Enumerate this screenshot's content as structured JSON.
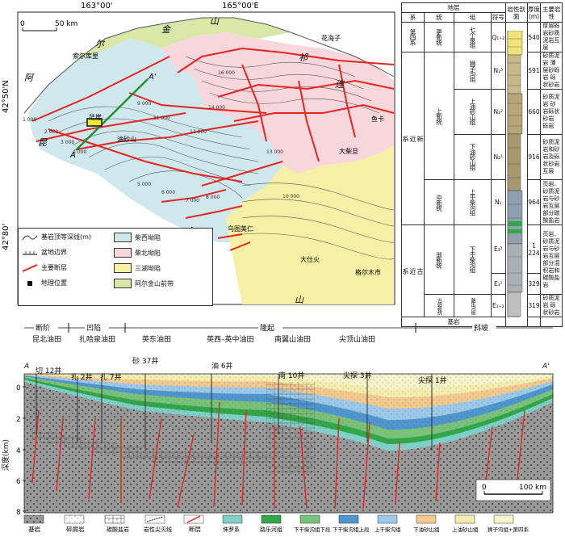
{
  "map": {
    "lon_labels": [
      "163°00'",
      "165°00'E"
    ],
    "lat_labels": [
      "42°50'N",
      "42°80'"
    ],
    "scale": "50 km",
    "places": [
      "索尔库里",
      "花海子",
      "鱼卡",
      "乌图美仁",
      "大柴旦",
      "格尔木市",
      "大仕火",
      "油砂山",
      "茫崖"
    ],
    "section_end_a": "A",
    "section_end_b": "A'",
    "frame_letters": [
      "阿",
      "尔",
      "金",
      "山",
      "祁",
      "连",
      "昆",
      "仑",
      "山"
    ],
    "contour_values": [
      "1 000",
      "2 000",
      "3 000",
      "4 000",
      "5 000",
      "6 000",
      "7 000",
      "8 000",
      "9 000",
      "10 000",
      "11 000",
      "12 000",
      "13 000",
      "14 000",
      "16 000"
    ],
    "legend": [
      {
        "label": "基岩顶等深线(m)",
        "type": "contour"
      },
      {
        "label": "盆地边界",
        "type": "boundary"
      },
      {
        "label": "主要断层",
        "type": "fault"
      },
      {
        "label": "地理位置",
        "type": "point"
      },
      {
        "label": "柴西坳陷",
        "type": "fill",
        "color": "#cfe8ee"
      },
      {
        "label": "柴北坳陷",
        "type": "fill",
        "color": "#f7d6dc"
      },
      {
        "label": "三湖坳陷",
        "type": "fill",
        "color": "#f5f0a6"
      },
      {
        "label": "阿尔金山前带",
        "type": "fill",
        "color": "#d9e8a8"
      }
    ]
  },
  "strat": {
    "header": {
      "strata": "地层",
      "xi": "系",
      "tong": "统",
      "zu": "组",
      "fuhao": "符号",
      "column": "岩性剖面",
      "thick": "厚度(m)",
      "lith": "主要岩性"
    },
    "rows": [
      {
        "xi": "第四系",
        "tong": "更新统",
        "zu": "七个泉组",
        "sym": "Q₁₊₂",
        "thick": "540",
        "lith": "厚层砾岩砂质泥岩互层"
      },
      {
        "xi": "",
        "tong": "上",
        "zu": "狮子沟组",
        "sym": "N₂³",
        "thick": "591",
        "lith": "砂质泥岩 薄层砂砾岩 砾状砂岩"
      },
      {
        "xi": "新",
        "tong": "新",
        "zu": "上油砂山组",
        "sym": "N₂²",
        "thick": "660",
        "lith": "砂质泥岩 砂岩砾状砂岩 砾岩"
      },
      {
        "xi": "近",
        "tong": "统",
        "zu": "下油砂山组",
        "sym": "N₂¹",
        "thick": "916",
        "lith": "砂质泥岩和砂岩及砾状砂岩互层"
      },
      {
        "xi": "系",
        "tong": "中新统",
        "zu": "上干柴沟组",
        "sym": "N₁",
        "thick": "964",
        "lith": "页岩、砂质泥岩与砂岩互层 部分碳酸盐岩"
      },
      {
        "xi": "古",
        "tong": "渐新统",
        "zu": "下干柴沟组",
        "sym": "E₃²",
        "thick": "1 224",
        "lith": "页岩、砂质泥岩与砂岩互层 部分混积岩和碳酸盐岩"
      },
      {
        "xi": "近",
        "tong": "",
        "zu": "",
        "sym": "E₃¹",
        "thick": "329",
        "lith": ""
      },
      {
        "xi": "系",
        "tong": "古始新统",
        "zu": "路乐河组",
        "sym": "E₁₊₂",
        "thick": "319",
        "lith": "砂质泥岩 砾状砂岩"
      }
    ],
    "basement": "基岩"
  },
  "section": {
    "zones": [
      {
        "label": "断阶"
      },
      {
        "label": "凹陷"
      },
      {
        "label": "隆起"
      },
      {
        "label": "斜坡"
      }
    ],
    "fields": [
      "昆北油田",
      "扎哈泉油田",
      "英东油田",
      "英西–英中油田",
      "南翼山油田",
      "尖顶山油田"
    ],
    "wells": [
      "切 12井",
      "扎 2井",
      "扎 7井",
      "砂 37井",
      "油 6井",
      "南 10井",
      "尖探 3井",
      "尖探 1井"
    ],
    "ends": [
      "A",
      "A'"
    ],
    "ylabel": "深度(km)",
    "yticks": [
      "0",
      "2",
      "4",
      "6",
      "8"
    ],
    "scale": "100 km",
    "scale_zero": "0"
  },
  "bottom_legend": [
    {
      "label": "基岩",
      "pattern": "basement"
    },
    {
      "label": "碎屑岩",
      "pattern": "clastic"
    },
    {
      "label": "碳酸盐岩",
      "pattern": "carbonate"
    },
    {
      "label": "岩性尖灭线",
      "pattern": "pinch"
    },
    {
      "label": "断层",
      "pattern": "fault"
    },
    {
      "label": "侏罗系",
      "color": "#7fcfc8"
    },
    {
      "label": "路乐河组",
      "color": "#33a64a"
    },
    {
      "label": "下干柴沟组下段",
      "color": "#7ac27a"
    },
    {
      "label": "下干柴沟组上段",
      "color": "#4f96cf"
    },
    {
      "label": "上干柴沟组",
      "color": "#9cc9e8"
    },
    {
      "label": "下油砂山组",
      "color": "#f2c98e"
    },
    {
      "label": "上油砂山组",
      "color": "#f3edb0"
    },
    {
      "label": "狮子沟组+第四系",
      "color": "#f7f3cc"
    }
  ]
}
